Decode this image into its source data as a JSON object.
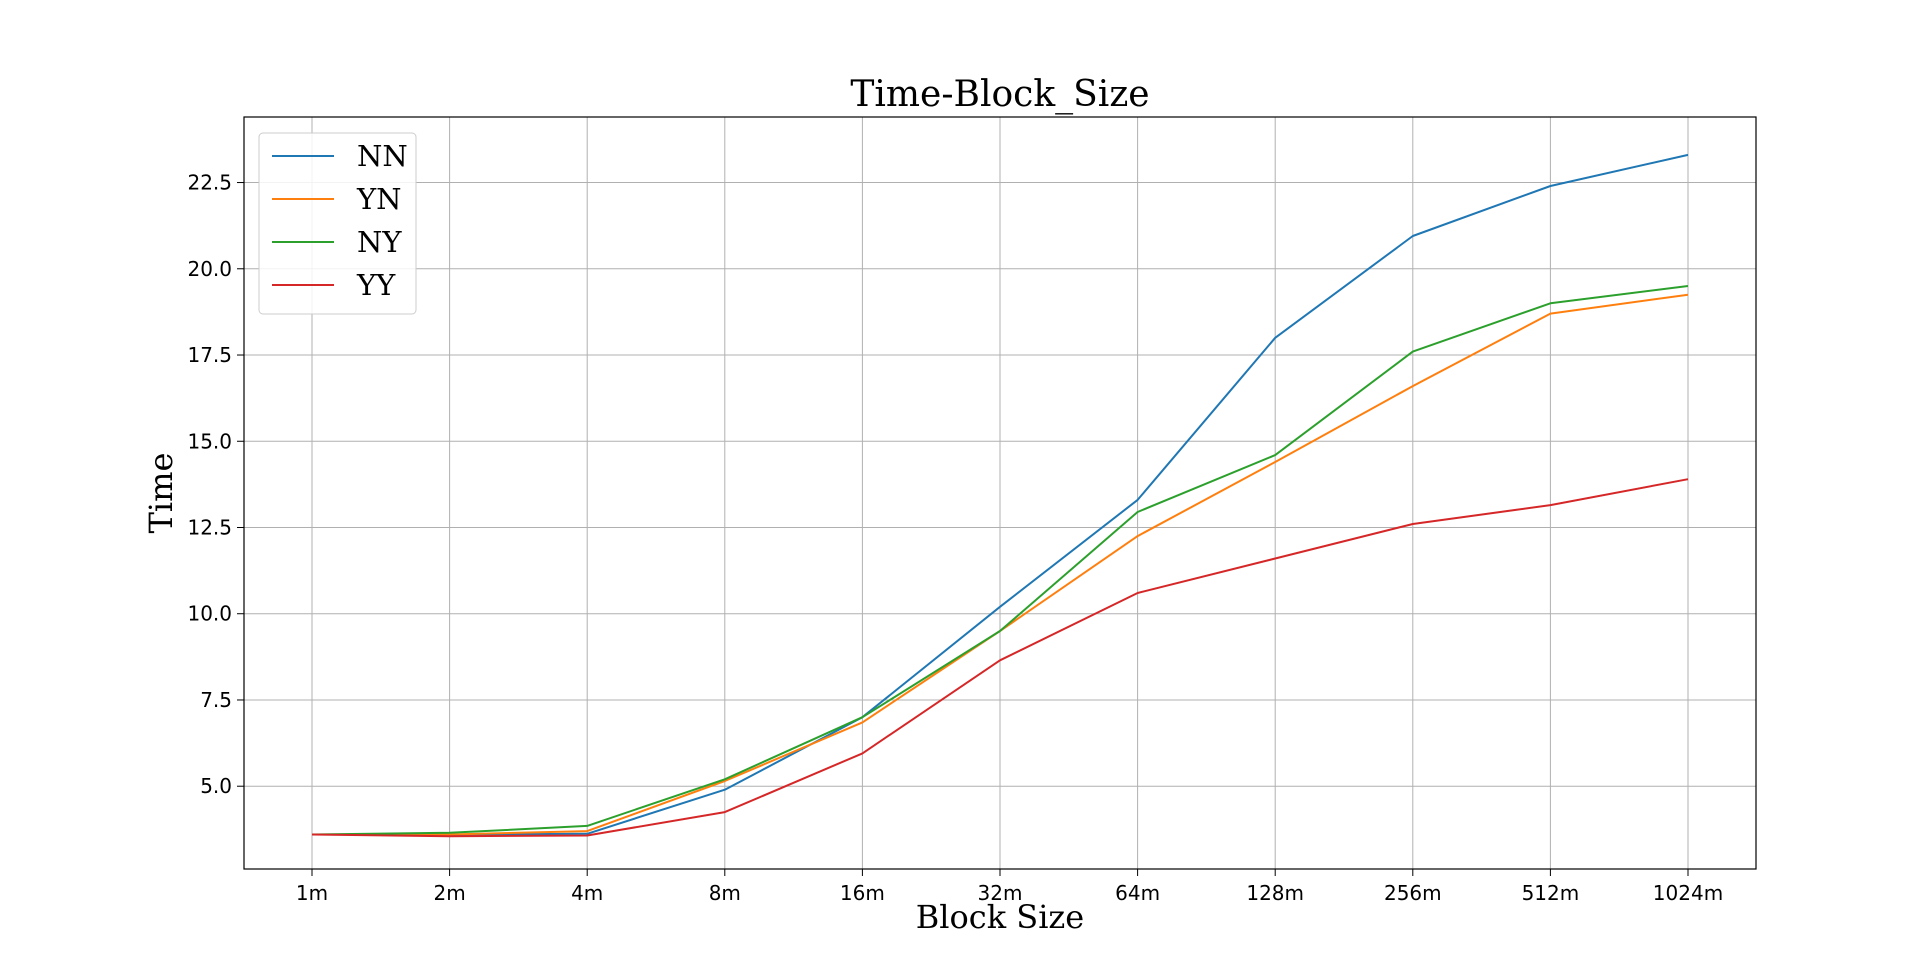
{
  "chart_data": {
    "type": "line",
    "title": "Time-Block_Size",
    "xlabel": "Block Size",
    "ylabel": "Time",
    "categories": [
      "1m",
      "2m",
      "4m",
      "8m",
      "16m",
      "32m",
      "64m",
      "128m",
      "256m",
      "512m",
      "1024m"
    ],
    "yticks": [
      "5.0",
      "7.5",
      "10.0",
      "12.5",
      "15.0",
      "17.5",
      "20.0",
      "22.5"
    ],
    "ylim": [
      2.6,
      24.4
    ],
    "grid": true,
    "legend_position": "top-left",
    "series": [
      {
        "name": "NN",
        "color": "#1f77b4",
        "values": [
          3.6,
          3.6,
          3.62,
          4.9,
          7.0,
          10.2,
          13.3,
          18.0,
          20.95,
          22.4,
          23.3
        ]
      },
      {
        "name": "YN",
        "color": "#ff7f0e",
        "values": [
          3.6,
          3.6,
          3.7,
          5.15,
          6.85,
          9.5,
          12.25,
          14.4,
          16.6,
          18.7,
          19.25
        ]
      },
      {
        "name": "NY",
        "color": "#2ca02c",
        "values": [
          3.6,
          3.65,
          3.85,
          5.2,
          7.0,
          9.5,
          12.95,
          14.6,
          17.6,
          19.0,
          19.5
        ]
      },
      {
        "name": "YY",
        "color": "#d62728",
        "values": [
          3.6,
          3.55,
          3.57,
          4.25,
          5.95,
          8.65,
          10.6,
          11.6,
          12.6,
          13.15,
          13.9
        ]
      }
    ]
  }
}
